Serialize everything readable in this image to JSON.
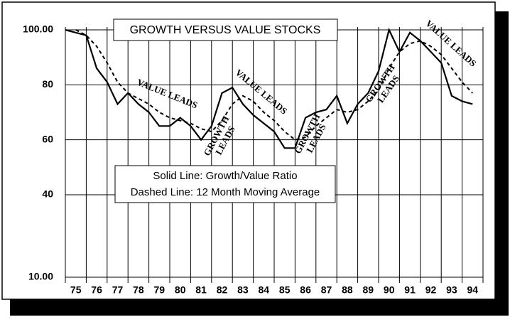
{
  "chart_data": {
    "type": "line",
    "title": "GROWTH VERSUS VALUE STOCKS",
    "x": [
      1975.0,
      1975.5,
      1976.0,
      1976.5,
      1977.0,
      1977.5,
      1978.0,
      1978.5,
      1979.0,
      1979.5,
      1980.0,
      1980.5,
      1981.0,
      1981.5,
      1982.0,
      1982.5,
      1983.0,
      1983.5,
      1984.0,
      1984.5,
      1985.0,
      1985.5,
      1986.0,
      1986.5,
      1987.0,
      1987.5,
      1988.0,
      1988.5,
      1989.0,
      1989.5,
      1990.0,
      1990.5,
      1991.0,
      1991.5,
      1992.0,
      1992.5,
      1993.0,
      1993.5,
      1994.0,
      1994.5
    ],
    "series": [
      {
        "name": "Solid Line: Growth/Value Ratio",
        "color": "#000000",
        "dashed": false,
        "values": [
          100,
          99,
          98,
          86,
          81,
          73,
          77,
          73,
          70,
          65,
          65,
          68,
          65,
          60,
          65,
          77,
          79,
          73,
          69,
          66,
          63,
          57,
          57,
          68,
          70,
          71,
          76,
          66,
          73,
          77,
          85,
          100,
          92,
          99,
          96,
          92,
          88,
          76,
          74,
          73
        ]
      },
      {
        "name": "Dashed Line: 12 Month Moving Average",
        "color": "#000000",
        "dashed": true,
        "values": [
          null,
          100,
          98,
          94,
          88,
          81,
          77,
          75,
          73,
          70,
          68,
          67,
          66,
          64,
          63,
          67,
          73,
          76,
          74,
          70,
          67,
          63,
          60,
          61,
          65,
          68,
          71,
          70,
          71,
          74,
          78,
          86,
          92,
          95,
          96,
          94,
          91,
          86,
          81,
          77
        ]
      }
    ],
    "xlim": [
      1975,
      1995
    ],
    "xticks": [
      {
        "value": 1975,
        "label": "75"
      },
      {
        "value": 1976,
        "label": "76"
      },
      {
        "value": 1977,
        "label": "77"
      },
      {
        "value": 1978,
        "label": "78"
      },
      {
        "value": 1979,
        "label": "79"
      },
      {
        "value": 1980,
        "label": "80"
      },
      {
        "value": 1981,
        "label": "81"
      },
      {
        "value": 1982,
        "label": "82"
      },
      {
        "value": 1983,
        "label": "83"
      },
      {
        "value": 1984,
        "label": "84"
      },
      {
        "value": 1985,
        "label": "85"
      },
      {
        "value": 1986,
        "label": "86"
      },
      {
        "value": 1987,
        "label": "87"
      },
      {
        "value": 1988,
        "label": "88"
      },
      {
        "value": 1989,
        "label": "89"
      },
      {
        "value": 1990,
        "label": "90"
      },
      {
        "value": 1991,
        "label": "91"
      },
      {
        "value": 1992,
        "label": "92"
      },
      {
        "value": 1993,
        "label": "93"
      },
      {
        "value": 1994,
        "label": "94"
      }
    ],
    "ylim": [
      10,
      100
    ],
    "yticks": [
      {
        "value": 100,
        "label": "100.00"
      },
      80,
      60,
      40,
      {
        "value": 10,
        "label": "10.00"
      }
    ],
    "grid": true,
    "annotations": [
      {
        "text": [
          "VALUE LEADS"
        ]
      },
      {
        "text": [
          "VALUE LEADS"
        ]
      },
      {
        "text": [
          "VALUE LEADS"
        ]
      },
      {
        "text": [
          "GROWTH",
          "LEADS"
        ]
      },
      {
        "text": [
          "GROWTH",
          "LEADS"
        ]
      },
      {
        "text": [
          "GROWTH",
          "LEADS"
        ]
      }
    ]
  }
}
